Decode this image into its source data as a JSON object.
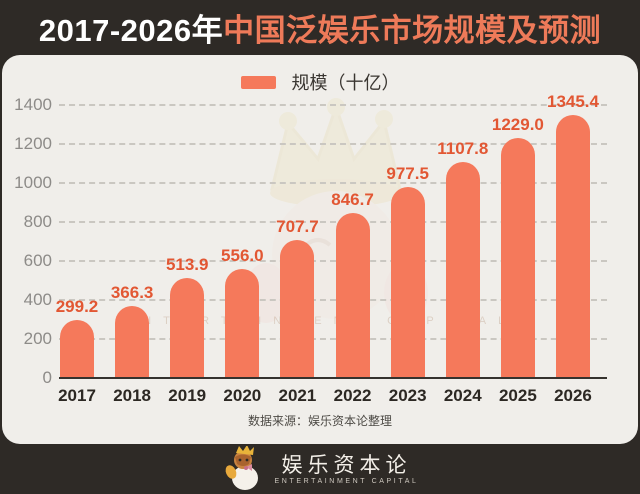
{
  "header": {
    "title_years": "2017-2026年",
    "title_rest": "中国泛娱乐市场规模及预测"
  },
  "legend": {
    "label": "规模（十亿）"
  },
  "chart_data": {
    "type": "bar",
    "title": "2017-2026年中国泛娱乐市场规模及预测",
    "categories": [
      "2017",
      "2018",
      "2019",
      "2020",
      "2021",
      "2022",
      "2023",
      "2024",
      "2025",
      "2026"
    ],
    "values": [
      299.2,
      366.3,
      513.9,
      556.0,
      707.7,
      846.7,
      977.5,
      1107.8,
      1229.0,
      1345.4
    ],
    "series_label": "规模（十亿）",
    "ylim": [
      0,
      1400
    ],
    "yticks": [
      0,
      200,
      400,
      600,
      800,
      1000,
      1200,
      1400
    ],
    "grid": "dashed-horizontal",
    "legend_position": "top-center",
    "bar_color": "#f5795b",
    "value_label_color": "#e25733",
    "axis_label_color": "#8d8b88",
    "xlabel": "",
    "ylabel": ""
  },
  "source": {
    "text": "数据来源：娱乐资本论整理"
  },
  "watermark": {
    "text": "ENTERTAINMENT CAPITAL"
  },
  "footer": {
    "logo_cn": "娱乐资本论",
    "logo_en": "ENTERTAINMENT CAPITAL"
  },
  "colors": {
    "background_dark": "#2e2a26",
    "panel_cream": "#f0eeea",
    "title_accent": "#ee7a59",
    "bar": "#f5795b",
    "value_label": "#e25733"
  }
}
